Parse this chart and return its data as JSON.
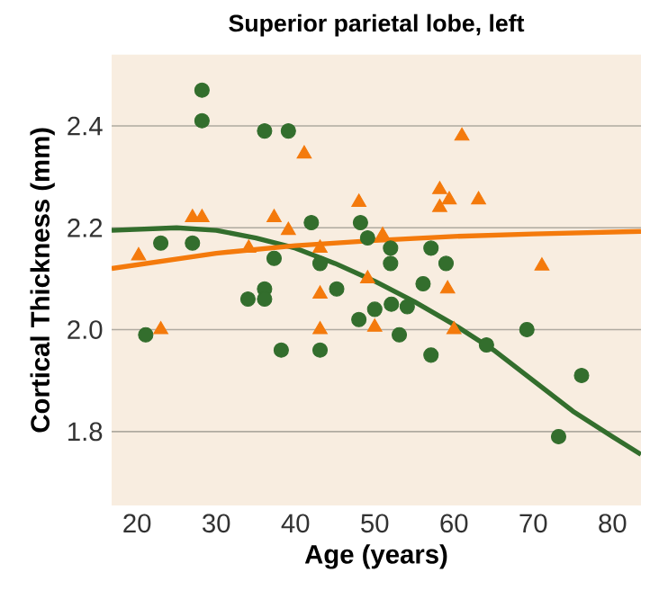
{
  "chart_data": {
    "type": "scatter",
    "title": "Superior parietal lobe, left",
    "xlabel": "Age (years)",
    "ylabel": "Cortical Thickness (mm)",
    "xlim": [
      16.8,
      83.6
    ],
    "ylim": [
      1.655,
      2.54
    ],
    "xticks": [
      20,
      30,
      40,
      50,
      60,
      70,
      80
    ],
    "yticks": [
      {
        "value": 1.8,
        "label": "1.8"
      },
      {
        "value": 2.0,
        "label": "2.0"
      },
      {
        "value": 2.2,
        "label": "2.2"
      },
      {
        "value": 2.4,
        "label": "2.4"
      }
    ],
    "grid": "y",
    "series": [
      {
        "marker": "circle",
        "color": "#336e2d",
        "x": [
          21.1,
          23,
          27,
          28.2,
          28.2,
          34,
          36.1,
          36.1,
          36.1,
          37.3,
          38.2,
          39.1,
          42,
          43.1,
          43.1,
          45.2,
          48.2,
          48,
          49.1,
          50,
          52,
          52,
          52.1,
          53.1,
          54.1,
          56.1,
          57.1,
          57.1,
          59,
          64.1,
          69.2,
          73.2,
          76.1
        ],
        "values": [
          1.99,
          2.17,
          2.17,
          2.47,
          2.41,
          2.06,
          2.08,
          2.06,
          2.39,
          2.14,
          1.96,
          2.39,
          2.21,
          2.13,
          1.96,
          2.08,
          2.21,
          2.02,
          2.18,
          2.04,
          2.16,
          2.13,
          2.05,
          1.99,
          2.045,
          2.09,
          2.16,
          1.95,
          2.13,
          1.97,
          2.0,
          1.79,
          1.91
        ]
      },
      {
        "marker": "triangle",
        "color": "#f47a0c",
        "x": [
          20.2,
          23,
          27,
          28.2,
          34.1,
          37.3,
          39.1,
          41.1,
          43.1,
          43.1,
          43.1,
          48,
          49.1,
          50,
          51,
          58.2,
          59.4,
          58.2,
          61,
          63.1,
          59.2,
          60,
          71.1
        ],
        "values": [
          2.145,
          2.0,
          2.22,
          2.22,
          2.16,
          2.22,
          2.195,
          2.345,
          2.16,
          2.07,
          2.0,
          2.25,
          2.1,
          2.005,
          2.185,
          2.275,
          2.255,
          2.24,
          2.38,
          2.255,
          2.08,
          2.0,
          2.125
        ]
      },
      {
        "type": "line",
        "marker": "none",
        "color": "#336e2d",
        "x": [
          16.8,
          25,
          30,
          35,
          40,
          45,
          50,
          55,
          60,
          65,
          70,
          75,
          80,
          83.6
        ],
        "values": [
          2.195,
          2.2,
          2.195,
          2.18,
          2.16,
          2.13,
          2.095,
          2.055,
          2.01,
          1.96,
          1.9,
          1.84,
          1.79,
          1.755
        ]
      },
      {
        "type": "line",
        "marker": "none",
        "color": "#f47a0c",
        "x": [
          16.8,
          30,
          40,
          50,
          60,
          70,
          83.6
        ],
        "values": [
          2.12,
          2.15,
          2.165,
          2.175,
          2.183,
          2.188,
          2.193
        ]
      }
    ]
  }
}
